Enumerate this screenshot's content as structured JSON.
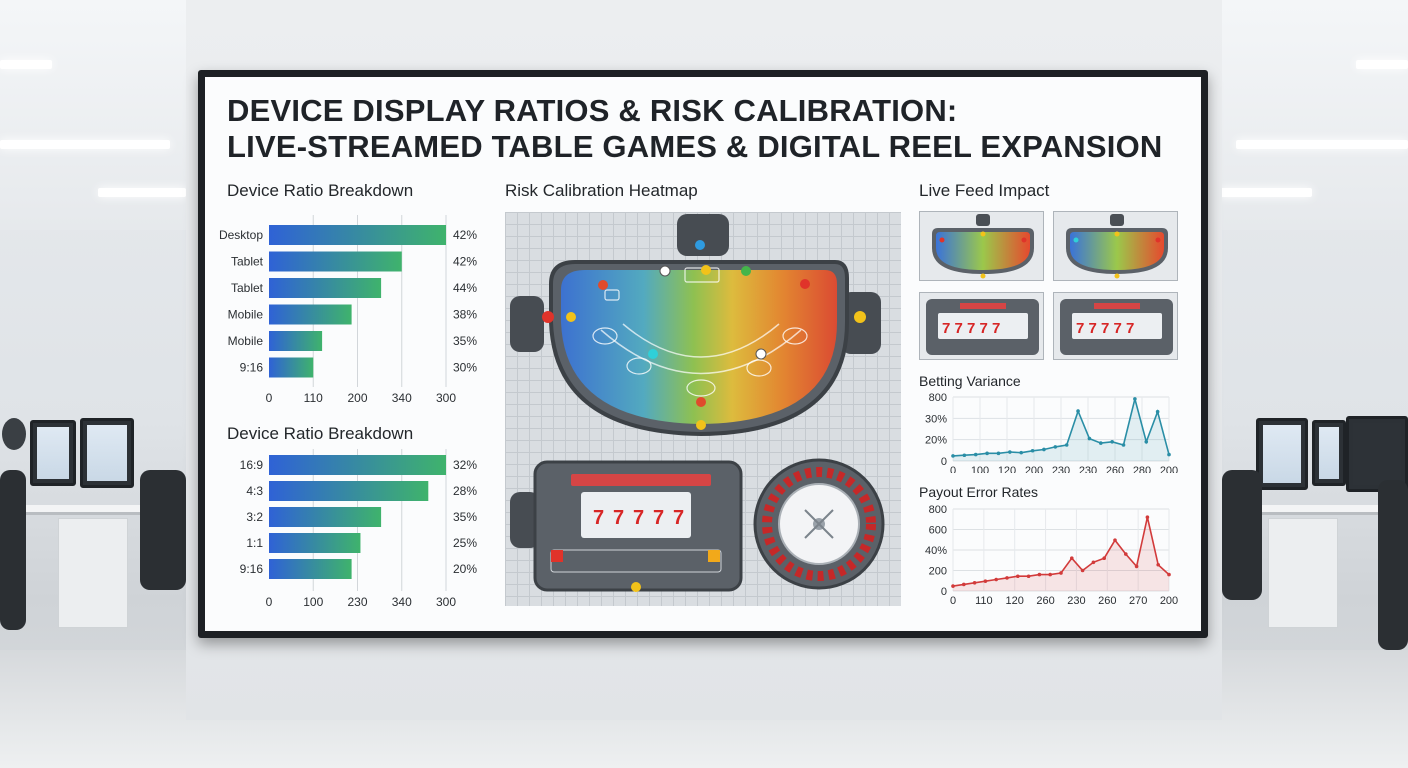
{
  "display": {
    "title_line1": "DEVICE DISPLAY RATIOS & RISK CALIBRATION:",
    "title_line2": "LIVE-STREAMED TABLE GAMES & DIGITAL REEL EXPANSION"
  },
  "sections": {
    "device_ratio_1": "Device Ratio Breakdown",
    "device_ratio_2": "Device Ratio Breakdown",
    "heatmap": "Risk Calibration Heatmap",
    "live_feed": "Live Feed Impact",
    "betting_variance": "Betting Variance",
    "payout_error": "Payout Error Rates"
  },
  "chart_data": [
    {
      "type": "bar",
      "orientation": "horizontal",
      "title": "Device Ratio Breakdown",
      "categories": [
        "Desktop",
        "Tablet",
        "Tablet",
        "Mobile",
        "Mobile",
        "9:16"
      ],
      "values": [
        300,
        225,
        190,
        140,
        90,
        75
      ],
      "value_labels": [
        "42%",
        "42%",
        "44%",
        "38%",
        "35%",
        "30%"
      ],
      "xticks": [
        "0",
        "110",
        "200",
        "340",
        "300"
      ],
      "xlim": [
        0,
        300
      ],
      "colors": [
        "#2f62d6",
        "#3fb36c"
      ]
    },
    {
      "type": "bar",
      "orientation": "horizontal",
      "title": "Device Ratio Breakdown",
      "categories": [
        "16:9",
        "4:3",
        "3:2",
        "1:1",
        "9:16"
      ],
      "values": [
        300,
        270,
        190,
        155,
        140
      ],
      "value_labels": [
        "32%",
        "28%",
        "35%",
        "25%",
        "20%"
      ],
      "xticks": [
        "0",
        "100",
        "230",
        "340",
        "300"
      ],
      "xlim": [
        0,
        300
      ],
      "colors": [
        "#2f62d6",
        "#3fb36c"
      ]
    },
    {
      "type": "line",
      "title": "Betting Variance",
      "xticks": [
        "0",
        "100",
        "120",
        "200",
        "230",
        "230",
        "260",
        "280",
        "200"
      ],
      "yticks": [
        "0",
        "20%",
        "30%",
        "800"
      ],
      "values": [
        0.08,
        0.09,
        0.1,
        0.12,
        0.12,
        0.14,
        0.13,
        0.16,
        0.18,
        0.22,
        0.25,
        0.78,
        0.35,
        0.28,
        0.3,
        0.25,
        0.97,
        0.3,
        0.77,
        0.1
      ],
      "color": "#2a8ea6"
    },
    {
      "type": "line",
      "title": "Payout Error Rates",
      "xticks": [
        "0",
        "110",
        "120",
        "260",
        "230",
        "260",
        "270",
        "200"
      ],
      "yticks": [
        "0",
        "200",
        "40%",
        "600",
        "800"
      ],
      "values": [
        0.06,
        0.08,
        0.1,
        0.12,
        0.14,
        0.16,
        0.18,
        0.18,
        0.2,
        0.2,
        0.22,
        0.4,
        0.25,
        0.35,
        0.4,
        0.62,
        0.45,
        0.3,
        0.9,
        0.32,
        0.2
      ],
      "color": "#d23b3b"
    }
  ]
}
